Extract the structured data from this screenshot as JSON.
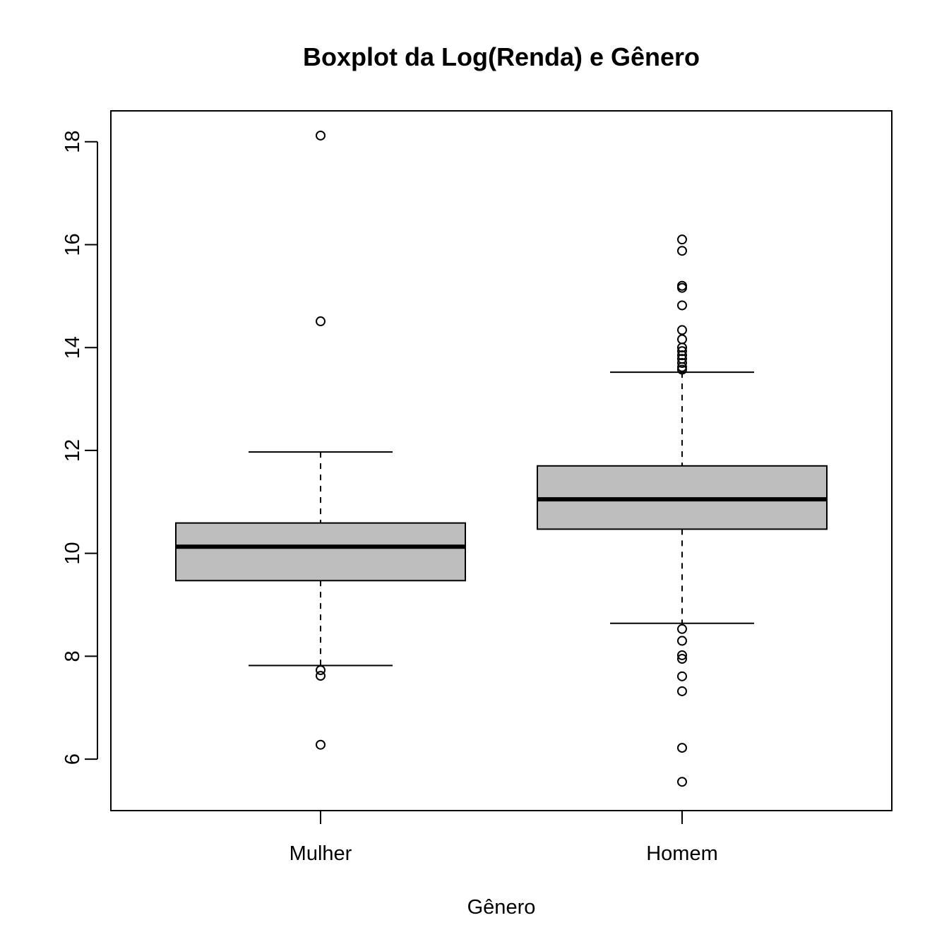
{
  "chart_data": {
    "type": "boxplot",
    "title": "Boxplot da Log(Renda) e Gênero",
    "xlabel": "Gênero",
    "ylabel": "",
    "ylim": [
      5,
      18.6
    ],
    "yticks": [
      6,
      8,
      10,
      12,
      14,
      16,
      18
    ],
    "categories": [
      "Mulher",
      "Homem"
    ],
    "box_color": "#bebebe",
    "series": [
      {
        "category": "Mulher",
        "whisker_low": 7.82,
        "q1": 9.47,
        "median": 10.13,
        "q3": 10.59,
        "whisker_high": 11.97,
        "outliers": [
          18.12,
          14.51,
          7.73,
          7.62,
          6.28
        ]
      },
      {
        "category": "Homem",
        "whisker_low": 8.64,
        "q1": 10.47,
        "median": 11.05,
        "q3": 11.7,
        "whisker_high": 13.52,
        "outliers": [
          16.1,
          15.88,
          15.2,
          15.16,
          14.82,
          14.34,
          14.16,
          14.0,
          13.93,
          13.85,
          13.78,
          13.7,
          13.62,
          13.57,
          8.53,
          8.3,
          8.02,
          7.95,
          7.61,
          7.32,
          6.22,
          5.56
        ]
      }
    ]
  }
}
